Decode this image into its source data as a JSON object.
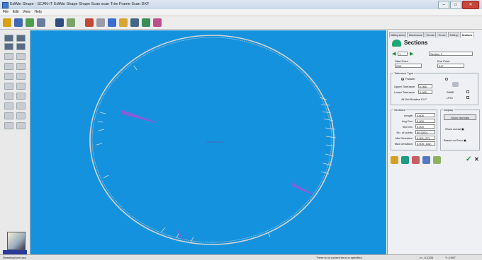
{
  "window": {
    "title": "EdWin Shape - SCAN-IT EdWin Shape Shape Scan scan Trim Frame Scan DXF"
  },
  "menubar": [
    "File",
    "Edit",
    "View",
    "Help"
  ],
  "toolbar": {
    "icon_names": [
      "rotate-icon",
      "save-icon",
      "scan-icon",
      "trace-icon",
      "frame-icon",
      "measure-icon",
      "eye-icon",
      "bevel-icon",
      "pencil-icon",
      "crop-icon",
      "grid-icon",
      "export-icon",
      "eraser-icon"
    ]
  },
  "panel": {
    "tabs": [
      "Mitting Axes",
      "Dimensions",
      "Events",
      "Errors",
      "Editing",
      "Sections"
    ],
    "active_tab": "Sections",
    "title": "Sections",
    "nav": {
      "section_value": "1",
      "name_value": "Section 1"
    },
    "start_point": {
      "label": "Start Point",
      "value": "298"
    },
    "end_point": {
      "label": "End Point",
      "value": "347"
    },
    "tolerance": {
      "group_label": "Tolerance Type",
      "parallel_label": "Parallel",
      "upper_label": "Upper Tolerance",
      "upper_value": "0.060",
      "lower_label": "Lower Tolerance",
      "lower_value": "0.060",
      "set_label": "All Set Relative Fit T"
    },
    "right_options": {
      "label_a": "SABE",
      "label_b": "LPIC"
    },
    "sections": {
      "group_label": "Sections",
      "rows": [
        {
          "label": "Length",
          "value": "0.600"
        },
        {
          "label": "Avg Dev",
          "value": "0.000"
        },
        {
          "label": "Std Dev",
          "value": "0.000"
        },
        {
          "label": "No. of points",
          "value": "50 (200)"
        },
        {
          "label": "Min Deviation",
          "value": "0.001 (97)"
        },
        {
          "label": "Max Deviation",
          "value": "0.005 (182)"
        }
      ]
    },
    "display": {
      "group_label": "Display",
      "show_normals": "Show Normals",
      "show_actual": "Show actual ▣",
      "based_on_error": "Based on Error ▣"
    },
    "bottom_icon_names": [
      "pencil-icon",
      "save-icon",
      "delete-icon",
      "chart-icon",
      "cursor-icon"
    ]
  },
  "canvas": {
    "background": "#1592dd",
    "outline_color": "#c8c8c8",
    "deviation_color": "#8a5cd8"
  },
  "status": {
    "left": "Download one pcs",
    "center": "There is no current error or specified",
    "right_a": "x= -0.1234",
    "right_b": "Y: 4.567"
  }
}
